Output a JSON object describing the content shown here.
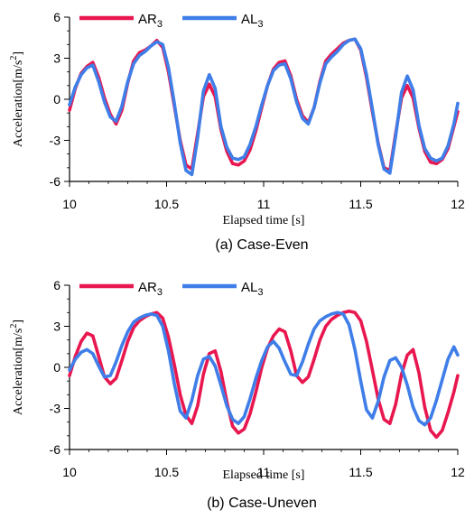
{
  "chart_data": [
    {
      "type": "line",
      "caption": "(a) Case-Even",
      "xlabel": "Elapsed time [s]",
      "ylabel": "Acceleration[m/s2]",
      "ylabel_main": "Acceleration[m/s",
      "ylabel_sup": "2",
      "ylabel_end": "]",
      "xlim": [
        10,
        12
      ],
      "ylim": [
        -6,
        6
      ],
      "xticks": [
        "10",
        "10.5",
        "11",
        "11.5",
        "12"
      ],
      "yticks": [
        "6",
        "3",
        "0",
        "-3",
        "-6"
      ],
      "legend_position": "top-left",
      "series": [
        {
          "name": "AR3",
          "label_main": "AR",
          "label_sub": "3",
          "color": "#e8174f",
          "x": [
            10,
            10.03,
            10.06,
            10.09,
            10.12,
            10.15,
            10.18,
            10.21,
            10.24,
            10.27,
            10.3,
            10.33,
            10.36,
            10.39,
            10.42,
            10.45,
            10.48,
            10.51,
            10.54,
            10.57,
            10.6,
            10.63,
            10.66,
            10.69,
            10.72,
            10.75,
            10.78,
            10.81,
            10.84,
            10.87,
            10.9,
            10.93,
            10.96,
            10.99,
            11.02,
            11.05,
            11.08,
            11.11,
            11.14,
            11.17,
            11.2,
            11.23,
            11.26,
            11.29,
            11.32,
            11.35,
            11.38,
            11.41,
            11.44,
            11.47,
            11.5,
            11.53,
            11.56,
            11.59,
            11.62,
            11.65,
            11.68,
            11.71,
            11.74,
            11.77,
            11.8,
            11.83,
            11.86,
            11.89,
            11.92,
            11.95,
            11.98,
            12
          ],
          "y": [
            -0.8,
            0.8,
            1.9,
            2.4,
            2.7,
            1.6,
            0.1,
            -1.1,
            -1.8,
            -0.8,
            1.2,
            2.8,
            3.4,
            3.6,
            3.9,
            4.3,
            3.8,
            2.0,
            -0.5,
            -3.0,
            -4.8,
            -5.1,
            -2.5,
            0.2,
            1.1,
            0.2,
            -2.2,
            -3.8,
            -4.7,
            -4.8,
            -4.5,
            -3.7,
            -2.3,
            -0.6,
            1.0,
            2.2,
            2.7,
            2.8,
            1.7,
            0.0,
            -1.2,
            -1.7,
            -0.6,
            1.3,
            2.8,
            3.3,
            3.7,
            4.1,
            4.3,
            4.4,
            3.6,
            1.6,
            -0.9,
            -3.2,
            -5.0,
            -5.2,
            -2.5,
            0.1,
            1.0,
            0.1,
            -2.1,
            -3.8,
            -4.6,
            -4.7,
            -4.4,
            -3.6,
            -2.0,
            -0.9
          ]
        },
        {
          "name": "AL3",
          "label_main": "AL",
          "label_sub": "3",
          "color": "#3f7ee8",
          "x": [
            10,
            10.03,
            10.06,
            10.09,
            10.12,
            10.15,
            10.18,
            10.21,
            10.24,
            10.27,
            10.3,
            10.33,
            10.36,
            10.39,
            10.42,
            10.45,
            10.48,
            10.51,
            10.54,
            10.57,
            10.6,
            10.63,
            10.66,
            10.69,
            10.72,
            10.75,
            10.78,
            10.81,
            10.84,
            10.87,
            10.9,
            10.93,
            10.96,
            10.99,
            11.02,
            11.05,
            11.08,
            11.11,
            11.14,
            11.17,
            11.2,
            11.23,
            11.26,
            11.29,
            11.32,
            11.35,
            11.38,
            11.41,
            11.44,
            11.47,
            11.5,
            11.53,
            11.56,
            11.59,
            11.62,
            11.65,
            11.68,
            11.71,
            11.74,
            11.77,
            11.8,
            11.83,
            11.86,
            11.89,
            11.92,
            11.95,
            11.98,
            12
          ],
          "y": [
            -0.4,
            0.9,
            1.8,
            2.3,
            2.5,
            1.3,
            -0.2,
            -1.3,
            -1.6,
            -0.5,
            1.3,
            2.6,
            3.2,
            3.5,
            3.9,
            4.2,
            4.0,
            2.3,
            -0.3,
            -3.2,
            -5.2,
            -5.5,
            -2.8,
            0.6,
            1.8,
            0.8,
            -2.0,
            -3.5,
            -4.3,
            -4.4,
            -4.2,
            -3.3,
            -2.0,
            -0.4,
            1.0,
            2.1,
            2.5,
            2.6,
            1.5,
            -0.2,
            -1.4,
            -1.8,
            -0.6,
            1.2,
            2.6,
            3.1,
            3.5,
            4.0,
            4.3,
            4.4,
            3.7,
            1.8,
            -0.7,
            -3.3,
            -5.1,
            -5.4,
            -2.7,
            0.5,
            1.7,
            0.7,
            -1.9,
            -3.6,
            -4.3,
            -4.5,
            -4.3,
            -3.4,
            -1.8,
            -0.3
          ]
        }
      ]
    },
    {
      "type": "line",
      "caption": "(b) Case-Uneven",
      "xlabel": "Elapsed time [s]",
      "ylabel": "Acceleration[m/s2]",
      "ylabel_main": "Acceleration[m/s",
      "ylabel_sup": "2",
      "ylabel_end": "]",
      "xlim": [
        10,
        12
      ],
      "ylim": [
        -6,
        6
      ],
      "xticks": [
        "10",
        "10.5",
        "11",
        "11.5",
        "12"
      ],
      "yticks": [
        "6",
        "3",
        "0",
        "-3",
        "-6"
      ],
      "legend_position": "top-left",
      "series": [
        {
          "name": "AR3",
          "label_main": "AR",
          "label_sub": "3",
          "color": "#e8174f",
          "x": [
            10,
            10.03,
            10.06,
            10.09,
            10.12,
            10.15,
            10.18,
            10.21,
            10.24,
            10.27,
            10.3,
            10.33,
            10.36,
            10.39,
            10.42,
            10.45,
            10.48,
            10.51,
            10.54,
            10.57,
            10.6,
            10.63,
            10.66,
            10.69,
            10.72,
            10.75,
            10.78,
            10.81,
            10.84,
            10.87,
            10.9,
            10.93,
            10.96,
            10.99,
            11.02,
            11.05,
            11.08,
            11.11,
            11.14,
            11.17,
            11.2,
            11.23,
            11.26,
            11.29,
            11.32,
            11.35,
            11.38,
            11.41,
            11.44,
            11.47,
            11.5,
            11.53,
            11.56,
            11.59,
            11.62,
            11.65,
            11.68,
            11.71,
            11.74,
            11.77,
            11.8,
            11.83,
            11.86,
            11.89,
            11.92,
            11.95,
            11.98,
            12
          ],
          "y": [
            -0.6,
            0.8,
            1.9,
            2.5,
            2.3,
            0.8,
            -0.7,
            -1.2,
            -0.8,
            0.5,
            1.9,
            2.9,
            3.4,
            3.7,
            3.9,
            4.0,
            3.6,
            2.2,
            0.2,
            -2.0,
            -3.5,
            -4.1,
            -2.8,
            -0.5,
            1.0,
            1.2,
            -0.3,
            -2.5,
            -4.3,
            -4.8,
            -4.5,
            -3.4,
            -1.8,
            0.0,
            1.4,
            2.3,
            2.8,
            2.6,
            1.2,
            -0.6,
            -1.1,
            -0.7,
            0.6,
            2.0,
            3.0,
            3.5,
            3.8,
            4.0,
            4.1,
            4.0,
            3.4,
            1.9,
            -0.2,
            -2.3,
            -3.8,
            -4.1,
            -2.7,
            -0.5,
            0.9,
            1.3,
            -0.4,
            -2.9,
            -4.6,
            -5.1,
            -4.6,
            -3.3,
            -1.8,
            -0.6
          ]
        },
        {
          "name": "AL3",
          "label_main": "AL",
          "label_sub": "3",
          "color": "#3f7ee8",
          "x": [
            10,
            10.03,
            10.06,
            10.09,
            10.12,
            10.15,
            10.18,
            10.21,
            10.24,
            10.27,
            10.3,
            10.33,
            10.36,
            10.39,
            10.42,
            10.45,
            10.48,
            10.51,
            10.54,
            10.57,
            10.6,
            10.63,
            10.66,
            10.69,
            10.72,
            10.75,
            10.78,
            10.81,
            10.84,
            10.87,
            10.9,
            10.93,
            10.96,
            10.99,
            11.02,
            11.05,
            11.08,
            11.11,
            11.14,
            11.17,
            11.2,
            11.23,
            11.26,
            11.29,
            11.32,
            11.35,
            11.38,
            11.41,
            11.44,
            11.47,
            11.5,
            11.53,
            11.56,
            11.59,
            11.62,
            11.65,
            11.68,
            11.71,
            11.74,
            11.77,
            11.8,
            11.83,
            11.86,
            11.89,
            11.92,
            11.95,
            11.98,
            12
          ],
          "y": [
            -0.2,
            0.6,
            1.1,
            1.3,
            1.0,
            0.1,
            -0.7,
            -0.6,
            0.4,
            1.6,
            2.6,
            3.3,
            3.6,
            3.8,
            3.9,
            3.8,
            3.0,
            1.2,
            -1.2,
            -3.2,
            -3.7,
            -2.4,
            -0.6,
            0.6,
            0.8,
            0.1,
            -1.3,
            -2.8,
            -3.8,
            -4.1,
            -3.6,
            -2.3,
            -0.8,
            0.5,
            1.5,
            1.9,
            1.4,
            0.4,
            -0.5,
            -0.6,
            0.4,
            1.7,
            2.8,
            3.4,
            3.7,
            3.9,
            4.0,
            3.9,
            3.1,
            1.3,
            -1.0,
            -3.1,
            -3.7,
            -2.5,
            -0.7,
            0.5,
            0.7,
            0.0,
            -1.3,
            -2.9,
            -3.9,
            -4.2,
            -3.7,
            -2.4,
            -0.9,
            0.6,
            1.5,
            0.9
          ]
        }
      ]
    }
  ]
}
